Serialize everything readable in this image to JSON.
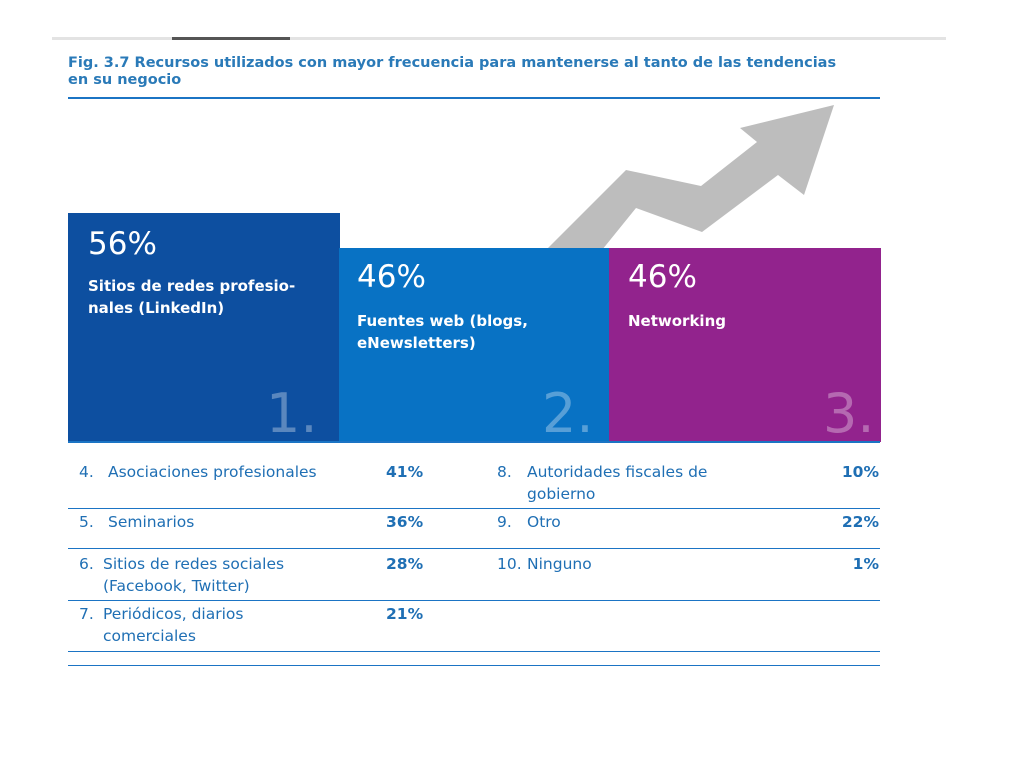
{
  "title": "Fig. 3.7 Recursos utilizados con mayor frecuencia para mantenerse al tanto de las tendencias en su negocio",
  "colors": {
    "block_1": "#0d4fa0",
    "block_2": "#0872c4",
    "block_3": "#92238d",
    "arrow": "#bdbdbd",
    "text": "#1f6fb4"
  },
  "chart_data": {
    "type": "bar",
    "title": "Fig. 3.7 Recursos utilizados con mayor frecuencia para mantenerse al tanto de las tendencias en su negocio",
    "top3": [
      {
        "rank": "1.",
        "value": 56,
        "value_label": "56%",
        "label": "Sitios de redes profesio- nales (LinkedIn)"
      },
      {
        "rank": "2.",
        "value": 46,
        "value_label": "46%",
        "label": "Fuentes web (blogs, eNewsletters)"
      },
      {
        "rank": "3.",
        "value": 46,
        "value_label": "46%",
        "label": "Networking"
      }
    ],
    "table": [
      {
        "num": "4.",
        "label": "Asociaciones profesionales",
        "value": 41,
        "value_label": "41%"
      },
      {
        "num": "5.",
        "label": "Seminarios",
        "value": 36,
        "value_label": "36%"
      },
      {
        "num": "6.",
        "label": "Sitios de redes sociales (Facebook, Twitter)",
        "value": 28,
        "value_label": "28%"
      },
      {
        "num": "7.",
        "label": "Periódicos, diarios comerciales",
        "value": 21,
        "value_label": "21%"
      },
      {
        "num": "8.",
        "label": "Autoridades fiscales de gobierno",
        "value": 10,
        "value_label": "10%"
      },
      {
        "num": "9.",
        "label": "Otro",
        "value": 22,
        "value_label": "22%"
      },
      {
        "num": "10.",
        "label": "Ninguno",
        "value": 1,
        "value_label": "1%"
      }
    ]
  }
}
